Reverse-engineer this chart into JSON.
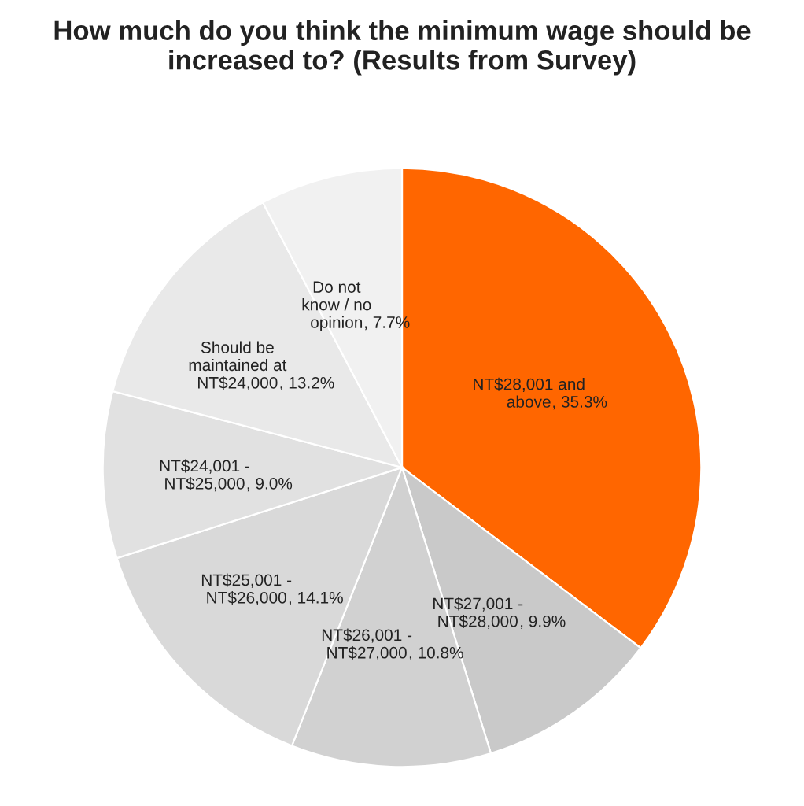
{
  "chart_data": {
    "type": "pie",
    "title": "How much do you think the minimum wage should be increased to? (Results from Survey)",
    "categories": [
      "NT$28,001 and\nabove",
      "NT$27,001 -\nNT$28,000",
      "NT$26,001 -\nNT$27,000",
      "NT$25,001 -\nNT$26,000",
      "NT$24,001 -\nNT$25,000",
      "Should be\nmaintained at\nNT$24,000",
      "Do not\nknow / no\nopinion"
    ],
    "values": [
      35.3,
      9.9,
      10.8,
      14.1,
      9.0,
      13.2,
      7.7
    ],
    "colors": [
      "#ff6600",
      "#c9c9c9",
      "#d1d1d1",
      "#d9d9d9",
      "#e1e1e1",
      "#e9e9e9",
      "#f1f1f1"
    ],
    "value_labels": [
      ", 35.3%",
      ", 9.9%",
      ", 10.8%",
      ", 14.1%",
      ", 9.0%",
      ", 13.2%",
      ", 7.7%"
    ]
  }
}
